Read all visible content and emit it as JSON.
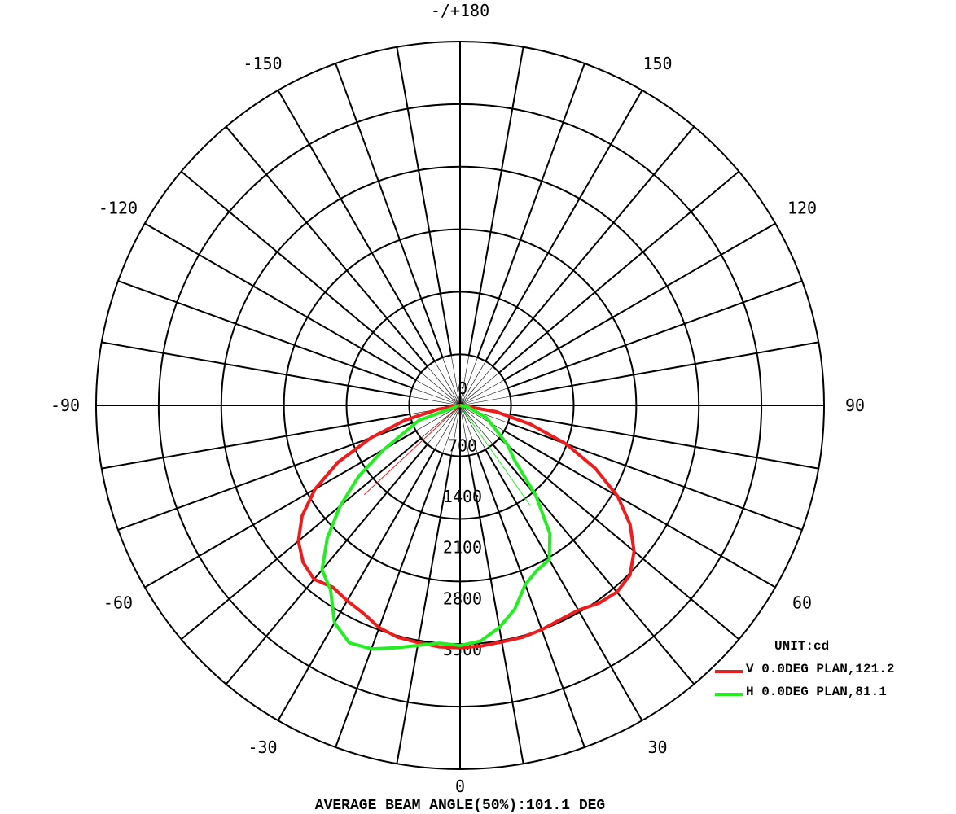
{
  "chart_data": {
    "type": "polar",
    "angle_labels": [
      {
        "deg": 180,
        "text": "-/+180"
      },
      {
        "deg": 150,
        "text": "150"
      },
      {
        "deg": -150,
        "text": "-150"
      },
      {
        "deg": 120,
        "text": "120"
      },
      {
        "deg": -120,
        "text": "-120"
      },
      {
        "deg": 90,
        "text": "90"
      },
      {
        "deg": -90,
        "text": "-90"
      },
      {
        "deg": 60,
        "text": "60"
      },
      {
        "deg": -60,
        "text": "-60"
      },
      {
        "deg": 30,
        "text": "30"
      },
      {
        "deg": -30,
        "text": "-30"
      }
    ],
    "radial_ticks": [
      "0",
      "700",
      "1400",
      "2100",
      "2800",
      "3500"
    ],
    "radial_tick_values": [
      0,
      700,
      1400,
      2100,
      2800,
      3500
    ],
    "rmax": 5000,
    "grid": true,
    "unit_label": "UNIT:cd",
    "series": [
      {
        "name": "V 0.0DEG PLAN,121.2",
        "color": "#ee1c1c",
        "points": [
          [
            -90,
            0
          ],
          [
            -80,
            300
          ],
          [
            -75,
            780
          ],
          [
            -70,
            1300
          ],
          [
            -65,
            1850
          ],
          [
            -60,
            2300
          ],
          [
            -55,
            2650
          ],
          [
            -50,
            2900
          ],
          [
            -45,
            3050
          ],
          [
            -40,
            3120
          ],
          [
            -35,
            3050
          ],
          [
            -30,
            3100
          ],
          [
            -25,
            3150
          ],
          [
            -20,
            3250
          ],
          [
            -15,
            3300
          ],
          [
            -10,
            3310
          ],
          [
            -5,
            3330
          ],
          [
            0,
            3330
          ],
          [
            5,
            3320
          ],
          [
            10,
            3300
          ],
          [
            15,
            3300
          ],
          [
            20,
            3280
          ],
          [
            25,
            3250
          ],
          [
            30,
            3250
          ],
          [
            35,
            3320
          ],
          [
            40,
            3350
          ],
          [
            45,
            3300
          ],
          [
            50,
            3120
          ],
          [
            55,
            2850
          ],
          [
            60,
            2500
          ],
          [
            65,
            2050
          ],
          [
            70,
            1550
          ],
          [
            75,
            1000
          ],
          [
            80,
            500
          ],
          [
            90,
            0
          ]
        ]
      },
      {
        "name": "H 0.0DEG PLAN,81.1",
        "color": "#22ee22",
        "points": [
          [
            -90,
            0
          ],
          [
            -70,
            600
          ],
          [
            -60,
            1200
          ],
          [
            -55,
            1700
          ],
          [
            -50,
            2150
          ],
          [
            -45,
            2580
          ],
          [
            -40,
            2950
          ],
          [
            -35,
            3100
          ],
          [
            -30,
            3450
          ],
          [
            -25,
            3600
          ],
          [
            -20,
            3560
          ],
          [
            -15,
            3450
          ],
          [
            -10,
            3350
          ],
          [
            -5,
            3280
          ],
          [
            0,
            3300
          ],
          [
            5,
            3250
          ],
          [
            10,
            3100
          ],
          [
            15,
            2900
          ],
          [
            20,
            2620
          ],
          [
            25,
            2500
          ],
          [
            30,
            2450
          ],
          [
            35,
            2150
          ],
          [
            40,
            1620
          ],
          [
            45,
            1050
          ],
          [
            50,
            860
          ],
          [
            55,
            620
          ],
          [
            65,
            400
          ],
          [
            80,
            100
          ],
          [
            90,
            0
          ]
        ]
      }
    ],
    "stray_lines": [
      {
        "series": 0,
        "angle": -47,
        "value": 1800
      },
      {
        "series": 1,
        "angle": 35,
        "value": 1680
      }
    ],
    "caption": "AVERAGE BEAM ANGLE(50%):101.1 DEG"
  }
}
